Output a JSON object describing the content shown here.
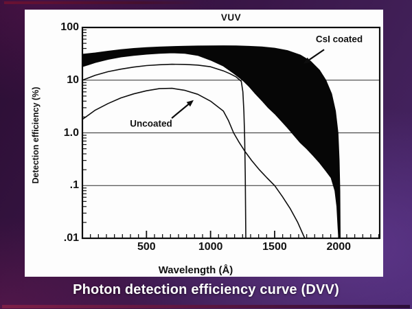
{
  "slide": {
    "caption": "Photon detection efficiency curve (DVV)",
    "background_accent_colors": {
      "top_bar": "#6a1133",
      "bottom_bar": "#7c1f47",
      "base_purple": "#3a1648"
    }
  },
  "figure": {
    "paper_color": "#fdfdfd",
    "ink_color": "#111111"
  },
  "chart_data": {
    "type": "area",
    "title": "VUV",
    "xlabel": "Wavelength (Å)",
    "ylabel": "Detection efficiency (%)",
    "y_scale": "log",
    "xlim": [
      0,
      2320
    ],
    "ylim": [
      0.01,
      100
    ],
    "grid": "horizontal-decades",
    "gridlines_y": [
      10,
      1,
      0.1
    ],
    "x_ticks_labeled": [
      {
        "value": 500,
        "label": "500"
      },
      {
        "value": 1000,
        "label": "1000"
      },
      {
        "value": 1500,
        "label": "1500"
      },
      {
        "value": 2000,
        "label": "2000"
      }
    ],
    "x_minor_tick_step": 62.5,
    "y_ticks_labeled": [
      {
        "value": 100,
        "label": "100"
      },
      {
        "value": 10,
        "label": "10"
      },
      {
        "value": 1,
        "label": "1.0"
      },
      {
        "value": 0.1,
        "label": ".1"
      },
      {
        "value": 0.01,
        "label": ".01"
      }
    ],
    "annotations": [
      {
        "label": "CsI coated",
        "x": 2004,
        "y": 60,
        "arrow": {
          "x1": 1886,
          "y1": 38,
          "x2": 1725,
          "y2": 20.5
        }
      },
      {
        "label": "Uncoated",
        "x": 536,
        "y": 1.5,
        "arrow": {
          "x1": 697,
          "y1": 1.9,
          "x2": 868,
          "y2": 4.2
        }
      }
    ],
    "series": [
      {
        "name": "CsI coated (upper bound)",
        "role": "band-upper",
        "color": "#060606",
        "points": [
          [
            0,
            31
          ],
          [
            100,
            33
          ],
          [
            200,
            35.5
          ],
          [
            300,
            38
          ],
          [
            400,
            40
          ],
          [
            500,
            41.5
          ],
          [
            600,
            42.6
          ],
          [
            700,
            43.5
          ],
          [
            800,
            44.1
          ],
          [
            900,
            44.6
          ],
          [
            1000,
            44.9
          ],
          [
            1100,
            45
          ],
          [
            1200,
            44.7
          ],
          [
            1300,
            44
          ],
          [
            1400,
            42.9
          ],
          [
            1500,
            40.5
          ],
          [
            1600,
            36.5
          ],
          [
            1700,
            30
          ],
          [
            1780,
            23
          ],
          [
            1850,
            15.5
          ],
          [
            1900,
            10
          ],
          [
            1945,
            5.5
          ],
          [
            1975,
            2.6
          ],
          [
            1995,
            1.0
          ],
          [
            2004,
            0.3
          ],
          [
            2009,
            0.08
          ],
          [
            2012,
            0.01
          ]
        ]
      },
      {
        "name": "CsI coated (lower bound)",
        "role": "band-lower",
        "color": "#060606",
        "points": [
          [
            0,
            18
          ],
          [
            100,
            21.5
          ],
          [
            200,
            24.8
          ],
          [
            300,
            27.5
          ],
          [
            400,
            29.5
          ],
          [
            500,
            31
          ],
          [
            600,
            32.3
          ],
          [
            700,
            33
          ],
          [
            800,
            32.3
          ],
          [
            900,
            29.5
          ],
          [
            1000,
            24
          ],
          [
            1100,
            18.5
          ],
          [
            1180,
            13.5
          ],
          [
            1250,
            10
          ],
          [
            1300,
            7.6
          ],
          [
            1350,
            5.5
          ],
          [
            1400,
            4.1
          ],
          [
            1450,
            3.0
          ],
          [
            1500,
            2.3
          ],
          [
            1550,
            1.7
          ],
          [
            1600,
            1.25
          ],
          [
            1650,
            0.9
          ],
          [
            1700,
            0.65
          ],
          [
            1750,
            0.5
          ],
          [
            1800,
            0.37
          ],
          [
            1850,
            0.27
          ],
          [
            1900,
            0.19
          ],
          [
            1940,
            0.14
          ],
          [
            1970,
            0.08
          ],
          [
            1985,
            0.04
          ],
          [
            1995,
            0.015
          ],
          [
            2000,
            0.01
          ]
        ]
      },
      {
        "name": "Uncoated (upper bound)",
        "role": "line",
        "color": "#0d0d0d",
        "points": [
          [
            0,
            10
          ],
          [
            100,
            12.4
          ],
          [
            200,
            14.5
          ],
          [
            300,
            16.2
          ],
          [
            400,
            17.7
          ],
          [
            500,
            18.9
          ],
          [
            600,
            19.6
          ],
          [
            700,
            20
          ],
          [
            800,
            19.9
          ],
          [
            900,
            19.3
          ],
          [
            1000,
            18
          ],
          [
            1100,
            15
          ],
          [
            1150,
            13.3
          ],
          [
            1200,
            11.5
          ],
          [
            1240,
            9.5
          ],
          [
            1252,
            6
          ],
          [
            1260,
            2.5
          ],
          [
            1266,
            0.8
          ],
          [
            1271,
            0.15
          ],
          [
            1275,
            0.01
          ]
        ]
      },
      {
        "name": "Uncoated (lower bound)",
        "role": "line",
        "color": "#0d0d0d",
        "points": [
          [
            0,
            1.8
          ],
          [
            100,
            2.7
          ],
          [
            200,
            3.6
          ],
          [
            300,
            4.6
          ],
          [
            400,
            5.5
          ],
          [
            500,
            6.3
          ],
          [
            600,
            6.9
          ],
          [
            700,
            7
          ],
          [
            800,
            6.4
          ],
          [
            900,
            5.4
          ],
          [
            1000,
            4.0
          ],
          [
            1100,
            2.6
          ],
          [
            1140,
            1.7
          ],
          [
            1180,
            1.0
          ],
          [
            1220,
            0.68
          ],
          [
            1270,
            0.44
          ],
          [
            1320,
            0.3
          ],
          [
            1380,
            0.2
          ],
          [
            1440,
            0.14
          ],
          [
            1500,
            0.1
          ],
          [
            1560,
            0.062
          ],
          [
            1620,
            0.037
          ],
          [
            1680,
            0.02
          ],
          [
            1735,
            0.01
          ]
        ]
      }
    ]
  }
}
